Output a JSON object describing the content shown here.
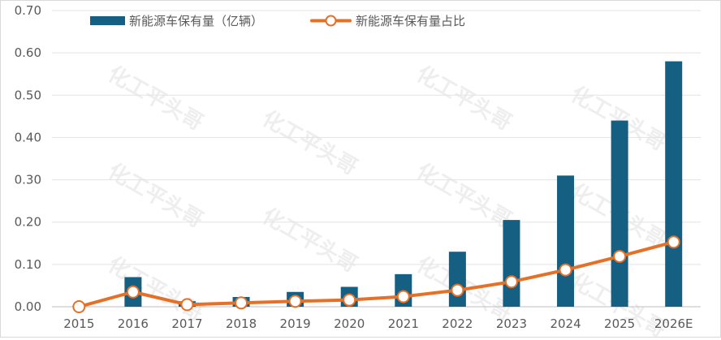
{
  "chart_data": {
    "type": "bar+line",
    "categories": [
      "2015",
      "2016",
      "2017",
      "2018",
      "2019",
      "2020",
      "2021",
      "2022",
      "2023",
      "2024",
      "2025",
      "2026E"
    ],
    "series": [
      {
        "name": "新能源车保有量（亿辆）",
        "kind": "bar",
        "color": "#155f83",
        "values": [
          0.0,
          0.07,
          0.013,
          0.023,
          0.035,
          0.047,
          0.077,
          0.13,
          0.205,
          0.31,
          0.44,
          0.58
        ]
      },
      {
        "name": "新能源车保有量占比",
        "kind": "line",
        "color": "#e57128",
        "values": [
          0.0,
          0.035,
          0.005,
          0.009,
          0.013,
          0.016,
          0.024,
          0.039,
          0.059,
          0.087,
          0.119,
          0.153
        ]
      }
    ],
    "yticks": [
      "0.00",
      "0.10",
      "0.20",
      "0.30",
      "0.40",
      "0.50",
      "0.60",
      "0.70"
    ],
    "ylim": [
      0,
      0.7
    ],
    "grid": true,
    "legend_position": "top",
    "watermark_text": "化工平头哥"
  }
}
